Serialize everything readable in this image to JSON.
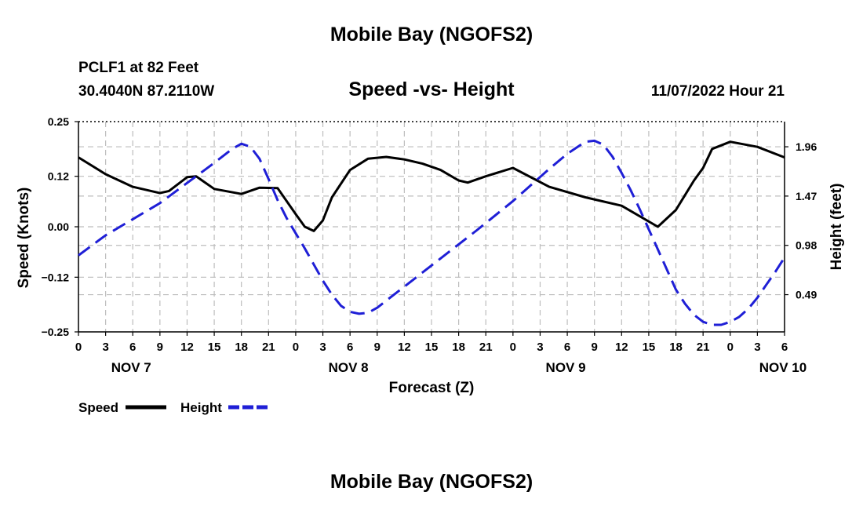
{
  "page": {
    "title": "Mobile Bay (NGOFS2)",
    "footer_title": "Mobile Bay (NGOFS2)",
    "station": "PCLF1 at 82 Feet",
    "coordinates": "30.4040N  87.2110W",
    "subtitle": "Speed -vs- Height",
    "datetime": "11/07/2022 Hour 21"
  },
  "chart_data": {
    "type": "line",
    "xlabel": "Forecast (Z)",
    "ylabel": "Speed (Knots)",
    "y2label": "Height (feet)",
    "xlim": [
      0,
      78
    ],
    "ylim": [
      -0.25,
      0.25
    ],
    "y2lim": [
      0.12,
      2.21
    ],
    "x_ticks": [
      0,
      3,
      6,
      9,
      12,
      15,
      18,
      21,
      24,
      27,
      30,
      33,
      36,
      39,
      42,
      45,
      48,
      51,
      54,
      57,
      60,
      63,
      66,
      69,
      72,
      75,
      78
    ],
    "x_tick_labels": [
      "0",
      "3",
      "6",
      "9",
      "12",
      "15",
      "18",
      "21",
      "0",
      "3",
      "6",
      "9",
      "12",
      "15",
      "18",
      "21",
      "0",
      "3",
      "6",
      "9",
      "12",
      "15",
      "18",
      "21",
      "0",
      "3",
      "6"
    ],
    "day_ticks": [
      6,
      30,
      54,
      78
    ],
    "day_labels": [
      "NOV 7",
      "NOV 8",
      "NOV 9",
      "NOV 10"
    ],
    "y_ticks": [
      -0.25,
      -0.12,
      0.0,
      0.12,
      0.25
    ],
    "y_tick_labels": [
      "−0.25",
      "−0.12",
      "0.00",
      "0.12",
      "0.25"
    ],
    "y2_ticks": [
      0.49,
      0.98,
      1.47,
      1.96
    ],
    "y2_tick_labels": [
      "0.49",
      "0.98",
      "1.47",
      "1.96"
    ],
    "grid": true,
    "legend": [
      {
        "name": "Speed",
        "color": "#000000",
        "style": "solid"
      },
      {
        "name": "Height",
        "color": "#1f1fd6",
        "style": "dashed"
      }
    ],
    "series": [
      {
        "name": "Speed",
        "axis": "left",
        "color": "#000000",
        "x": [
          0,
          3,
          6,
          9,
          10,
          12,
          13,
          15,
          18,
          20,
          22,
          24,
          25,
          26,
          27,
          28,
          30,
          32,
          34,
          36,
          38,
          40,
          42,
          43,
          45,
          48,
          52,
          56,
          60,
          64,
          66,
          68,
          69,
          70,
          72,
          75,
          78
        ],
        "y": [
          0.165,
          0.125,
          0.095,
          0.08,
          0.085,
          0.118,
          0.12,
          0.09,
          0.078,
          0.093,
          0.092,
          0.03,
          0.0,
          -0.01,
          0.015,
          0.07,
          0.135,
          0.162,
          0.166,
          0.16,
          0.15,
          0.135,
          0.11,
          0.105,
          0.12,
          0.14,
          0.095,
          0.07,
          0.05,
          0.0,
          0.04,
          0.11,
          0.14,
          0.185,
          0.202,
          0.19,
          0.165
        ]
      },
      {
        "name": "Height",
        "axis": "right",
        "color": "#1f1fd6",
        "x": [
          0,
          3,
          6,
          9,
          12,
          15,
          17,
          18,
          19,
          20,
          21,
          22,
          23,
          24,
          25,
          26,
          27,
          28,
          29,
          30,
          31,
          32,
          33,
          34,
          36,
          40,
          44,
          48,
          52,
          54,
          56,
          57,
          58,
          59,
          60,
          61,
          62,
          63,
          64,
          65,
          66,
          67,
          68,
          69,
          70,
          71,
          72,
          73,
          74,
          75,
          76,
          77,
          78
        ],
        "y": [
          0.88,
          1.08,
          1.24,
          1.4,
          1.6,
          1.8,
          1.94,
          1.99,
          1.96,
          1.84,
          1.64,
          1.43,
          1.25,
          1.1,
          0.95,
          0.79,
          0.63,
          0.49,
          0.38,
          0.32,
          0.3,
          0.31,
          0.36,
          0.43,
          0.57,
          0.85,
          1.13,
          1.42,
          1.74,
          1.89,
          2.01,
          2.02,
          1.98,
          1.86,
          1.7,
          1.53,
          1.34,
          1.14,
          0.94,
          0.74,
          0.54,
          0.4,
          0.29,
          0.22,
          0.19,
          0.19,
          0.22,
          0.27,
          0.35,
          0.46,
          0.59,
          0.72,
          0.86
        ]
      }
    ]
  }
}
